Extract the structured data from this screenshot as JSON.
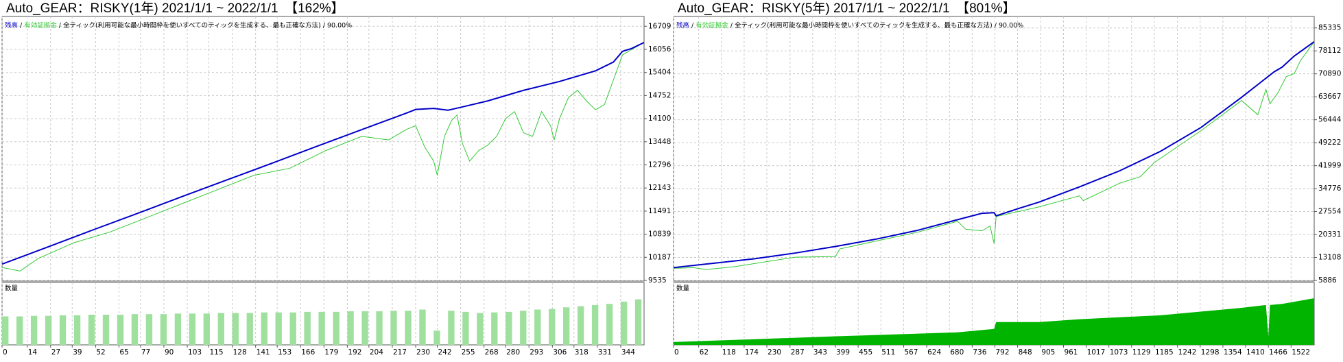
{
  "chart_data": [
    {
      "type": "line",
      "title": "Auto_GEAR：RISKY(1年) 2021/1/1 ~ 2022/1/1　【162%】",
      "legend_separator": " / ",
      "legend_note": " / 全ティック(利用可能な最小時間枠を使いすべてのティックを生成する、最も正確な方法) / 90.00%",
      "grid": true,
      "xlim": [
        0,
        357
      ],
      "xticks": [
        0,
        14,
        27,
        39,
        52,
        65,
        77,
        90,
        103,
        115,
        128,
        141,
        153,
        166,
        179,
        192,
        204,
        217,
        230,
        242,
        255,
        268,
        280,
        293,
        306,
        318,
        331,
        344
      ],
      "ylim": [
        9535,
        16927
      ],
      "yticks": [
        9535,
        10187,
        10839,
        11491,
        12143,
        12796,
        13448,
        14100,
        14752,
        15404,
        16056,
        16709
      ],
      "series": [
        {
          "name": "残高",
          "color": "#0000c8",
          "x": [
            0,
            25,
            50,
            75,
            100,
            125,
            150,
            175,
            200,
            225,
            230,
            240,
            248,
            255,
            270,
            290,
            310,
            330,
            340,
            345,
            350,
            357
          ],
          "values": [
            9995,
            10470,
            10950,
            11420,
            11900,
            12370,
            12840,
            13320,
            13790,
            14260,
            14360,
            14390,
            14340,
            14420,
            14600,
            14900,
            15150,
            15450,
            15700,
            16000,
            16080,
            16250
          ]
        },
        {
          "name": "有効証拠金",
          "color": "#32c832",
          "x": [
            0,
            10,
            20,
            40,
            60,
            80,
            100,
            120,
            140,
            160,
            180,
            200,
            215,
            225,
            230,
            235,
            240,
            242,
            246,
            250,
            253,
            256,
            260,
            265,
            270,
            275,
            280,
            285,
            290,
            295,
            300,
            305,
            307,
            310,
            315,
            320,
            325,
            330,
            335,
            340,
            345,
            350,
            357
          ],
          "values": [
            9900,
            9800,
            10150,
            10600,
            10900,
            11300,
            11700,
            12100,
            12500,
            12700,
            13200,
            13600,
            13500,
            13800,
            13900,
            13300,
            12900,
            12500,
            13600,
            14050,
            14200,
            13400,
            12900,
            13200,
            13350,
            13600,
            14100,
            14300,
            13700,
            13600,
            14300,
            13900,
            13500,
            14100,
            14700,
            14900,
            14600,
            14350,
            14500,
            15200,
            15900,
            16050,
            16250
          ]
        }
      ],
      "volume": {
        "name": "数量",
        "color": "#9fe09f",
        "ylim": [
          0,
          100
        ],
        "x": [
          0,
          8,
          16,
          24,
          32,
          40,
          48,
          56,
          64,
          72,
          80,
          88,
          96,
          104,
          112,
          120,
          128,
          136,
          144,
          152,
          160,
          168,
          176,
          184,
          192,
          200,
          208,
          216,
          224,
          232,
          240,
          248,
          256,
          264,
          272,
          280,
          288,
          296,
          304,
          312,
          320,
          328,
          336,
          344,
          352
        ],
        "values": [
          50,
          50,
          51,
          51,
          52,
          52,
          53,
          53,
          53,
          54,
          54,
          54,
          55,
          55,
          55,
          56,
          56,
          56,
          57,
          57,
          57,
          58,
          58,
          58,
          59,
          59,
          59,
          60,
          60,
          62,
          25,
          60,
          58,
          56,
          57,
          58,
          60,
          62,
          63,
          66,
          68,
          70,
          72,
          76,
          80
        ]
      }
    },
    {
      "type": "line",
      "title": "Auto_GEAR：RISKY(5年) 2017/1/1 ~ 2022/1/1　【801%】",
      "legend_separator": " / ",
      "legend_note": " / 全ティック(利用可能な最小時間枠を使いすべてのティックを生成する、最も正確な方法) / 90.00%",
      "grid": true,
      "xlim": [
        0,
        1579
      ],
      "xticks": [
        0,
        62,
        118,
        174,
        230,
        287,
        343,
        399,
        455,
        511,
        567,
        624,
        680,
        736,
        792,
        848,
        905,
        961,
        1017,
        1073,
        1129,
        1185,
        1242,
        1298,
        1354,
        1410,
        1466,
        1522
      ],
      "ylim": [
        5886,
        88297
      ],
      "yticks": [
        5886,
        13108,
        20331,
        27554,
        34776,
        41999,
        49222,
        56444,
        63667,
        70890,
        78112,
        85335
      ],
      "series": [
        {
          "name": "残高",
          "color": "#0000c8",
          "x": [
            0,
            100,
            200,
            300,
            400,
            500,
            600,
            700,
            760,
            790,
            795,
            850,
            900,
            1000,
            1100,
            1200,
            1300,
            1400,
            1450,
            1480,
            1500,
            1530,
            1579
          ],
          "values": [
            9900,
            11300,
            12700,
            14500,
            16600,
            18900,
            21600,
            25000,
            27000,
            27200,
            26200,
            28500,
            30500,
            35300,
            40400,
            46500,
            54000,
            63500,
            68500,
            71500,
            73000,
            76500,
            81000
          ]
        },
        {
          "name": "有効証拠金",
          "color": "#32c832",
          "x": [
            0,
            50,
            80,
            150,
            300,
            399,
            410,
            500,
            600,
            700,
            720,
            760,
            780,
            790,
            795,
            900,
            1000,
            1010,
            1100,
            1150,
            1185,
            1300,
            1400,
            1440,
            1460,
            1470,
            1490,
            1510,
            1530,
            1545,
            1579
          ],
          "values": [
            9700,
            9900,
            9300,
            10200,
            13200,
            13400,
            15800,
            18300,
            21000,
            24500,
            22000,
            21500,
            23000,
            17500,
            26000,
            29000,
            32500,
            31000,
            36500,
            38500,
            43000,
            53000,
            62500,
            58000,
            66000,
            61500,
            65000,
            70000,
            71000,
            75000,
            81000
          ]
        }
      ],
      "volume": {
        "name": "数量",
        "color": "#00b400",
        "ylim": [
          0,
          100
        ],
        "x": [
          0,
          200,
          400,
          700,
          790,
          795,
          900,
          1000,
          1200,
          1400,
          1460,
          1466,
          1470,
          1500,
          1579
        ],
        "values": [
          5,
          10,
          15,
          22,
          28,
          40,
          40,
          45,
          52,
          65,
          70,
          15,
          70,
          72,
          82
        ]
      }
    }
  ]
}
